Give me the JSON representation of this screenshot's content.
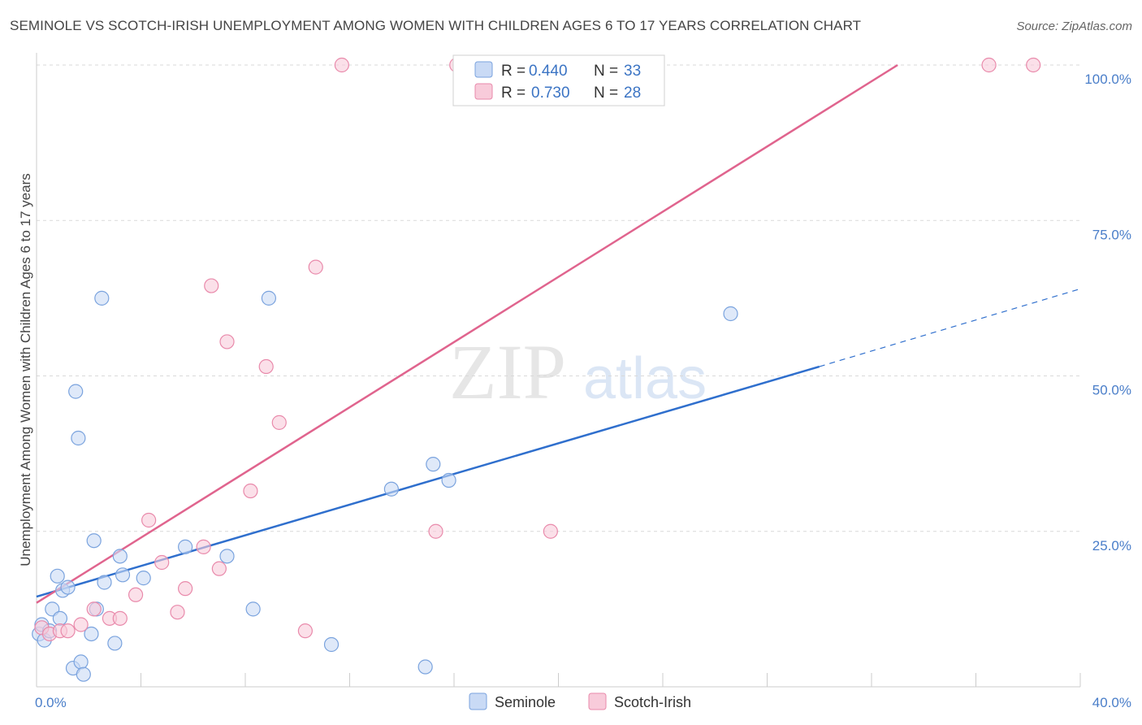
{
  "title": "SEMINOLE VS SCOTCH-IRISH UNEMPLOYMENT AMONG WOMEN WITH CHILDREN AGES 6 TO 17 YEARS CORRELATION CHART",
  "source": "Source: ZipAtlas.com",
  "watermark": {
    "zip": "ZIP",
    "atlas": "atlas"
  },
  "legend_box": [
    {
      "r_label": "R =",
      "r_value": "0.440",
      "n_label": "N =",
      "n_value": "33"
    },
    {
      "r_label": "R =",
      "r_value": "0.730",
      "n_label": "N =",
      "n_value": "28"
    }
  ],
  "bottom_legend": [
    "Seminole",
    "Scotch-Irish"
  ],
  "colors": {
    "seminole_fill": "#c9daf5",
    "seminole_stroke": "#7aa3de",
    "seminole_line": "#2f6fcd",
    "scotch_fill": "#f8cbda",
    "scotch_stroke": "#e98aab",
    "scotch_line": "#e0648e",
    "grid": "#d9d9d9",
    "tick_text": "#4a7ec9"
  },
  "chart_data": {
    "type": "scatter",
    "title": "SEMINOLE VS SCOTCH-IRISH UNEMPLOYMENT AMONG WOMEN WITH CHILDREN AGES 6 TO 17 YEARS CORRELATION CHART",
    "xlabel": "",
    "ylabel": "Unemployment Among Women with Children Ages 6 to 17 years",
    "xlim": [
      0,
      40
    ],
    "ylim": [
      0,
      102
    ],
    "x_tick_labels": [
      "0.0%",
      "40.0%"
    ],
    "y_ticks": [
      25,
      50,
      75,
      100
    ],
    "y_tick_labels": [
      "25.0%",
      "50.0%",
      "75.0%",
      "100.0%"
    ],
    "grid": "horizontal dashed",
    "legend_position": "top-center",
    "series": [
      {
        "name": "Seminole",
        "R": 0.44,
        "N": 33,
        "points": [
          [
            0.1,
            8.5
          ],
          [
            0.2,
            10
          ],
          [
            0.3,
            7.5
          ],
          [
            0.5,
            9
          ],
          [
            0.6,
            12.5
          ],
          [
            0.8,
            17.8
          ],
          [
            0.9,
            11
          ],
          [
            1.0,
            15.5
          ],
          [
            1.2,
            16
          ],
          [
            1.4,
            3
          ],
          [
            1.5,
            47.5
          ],
          [
            1.6,
            40
          ],
          [
            1.7,
            4
          ],
          [
            1.8,
            2
          ],
          [
            2.1,
            8.5
          ],
          [
            2.2,
            23.5
          ],
          [
            2.3,
            12.5
          ],
          [
            2.5,
            62.5
          ],
          [
            2.6,
            16.8
          ],
          [
            3.0,
            7
          ],
          [
            3.2,
            21
          ],
          [
            3.3,
            18
          ],
          [
            4.1,
            17.5
          ],
          [
            5.7,
            22.5
          ],
          [
            7.3,
            21
          ],
          [
            8.3,
            12.5
          ],
          [
            8.9,
            62.5
          ],
          [
            11.3,
            6.8
          ],
          [
            13.6,
            31.8
          ],
          [
            14.9,
            3.2
          ],
          [
            15.2,
            35.8
          ],
          [
            15.8,
            33.2
          ],
          [
            26.6,
            60
          ]
        ],
        "trend": {
          "x0": 0,
          "y0": 14.5,
          "x1": 30,
          "y1": 51.5,
          "dashed_to": {
            "x": 40,
            "y": 64
          }
        }
      },
      {
        "name": "Scotch-Irish",
        "R": 0.73,
        "N": 28,
        "points": [
          [
            0.2,
            9.5
          ],
          [
            0.5,
            8.5
          ],
          [
            0.9,
            9.0
          ],
          [
            1.2,
            9.0
          ],
          [
            1.7,
            10
          ],
          [
            2.2,
            12.5
          ],
          [
            2.8,
            11
          ],
          [
            3.2,
            11
          ],
          [
            3.8,
            14.8
          ],
          [
            4.3,
            26.8
          ],
          [
            4.8,
            20
          ],
          [
            5.4,
            12
          ],
          [
            5.7,
            15.8
          ],
          [
            6.4,
            22.5
          ],
          [
            6.7,
            64.5
          ],
          [
            7.0,
            19
          ],
          [
            7.3,
            55.5
          ],
          [
            8.2,
            31.5
          ],
          [
            8.8,
            51.5
          ],
          [
            9.3,
            42.5
          ],
          [
            10.3,
            9
          ],
          [
            10.7,
            67.5
          ],
          [
            11.7,
            100
          ],
          [
            15.3,
            25
          ],
          [
            16.1,
            100
          ],
          [
            19.7,
            25
          ],
          [
            36.5,
            100
          ],
          [
            38.2,
            100
          ]
        ],
        "trend": {
          "x0": 0,
          "y0": 13.5,
          "x1": 33,
          "y1": 100
        }
      }
    ]
  }
}
